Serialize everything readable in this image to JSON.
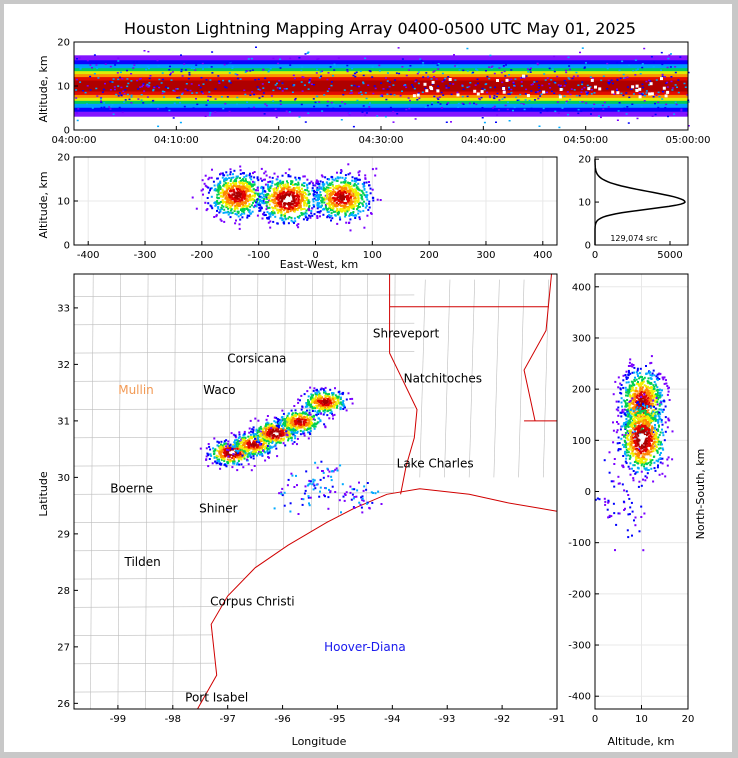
{
  "title": "Houston Lightning Mapping Array 0400-0500 UTC May 01, 2025",
  "chart_data": [
    {
      "id": "time-height",
      "type": "heatmap",
      "ylabel": "Altitude, km",
      "xlabel": "",
      "x_ticks": [
        "04:00:00",
        "04:10:00",
        "04:20:00",
        "04:30:00",
        "04:40:00",
        "04:50:00",
        "05:00:00"
      ],
      "y_ticks": [
        0,
        10,
        20
      ],
      "xlim": [
        "04:00:00",
        "05:00:00"
      ],
      "ylim": [
        0,
        20
      ],
      "band_center_km": 10,
      "band_halfwidth_km": 4.5
    },
    {
      "id": "ew-altitude",
      "type": "heatmap",
      "xlabel": "East-West, km",
      "ylabel": "Altitude, km",
      "x_ticks": [
        -400,
        -300,
        -200,
        -100,
        0,
        100,
        200,
        300,
        400
      ],
      "y_ticks": [
        0,
        10,
        20
      ],
      "xlim": [
        -425,
        425
      ],
      "ylim": [
        0,
        20
      ],
      "blobs_km": [
        {
          "x": -140,
          "z": 11.5,
          "core": "high"
        },
        {
          "x": -50,
          "z": 10.5,
          "core": "white"
        },
        {
          "x": 45,
          "z": 11,
          "core": "high"
        }
      ]
    },
    {
      "id": "altitude-histogram",
      "type": "line",
      "x_ticks": [
        0,
        5000
      ],
      "y_ticks": [
        0,
        10,
        20
      ],
      "xlim": [
        0,
        6200
      ],
      "ylim": [
        0,
        20.5
      ],
      "peak_altitude_km": 10,
      "peak_count": 6000,
      "annotation": "129,074 src"
    },
    {
      "id": "plan-view-map",
      "type": "scatter",
      "xlabel": "Longitude",
      "ylabel": "Latitude",
      "x_ticks": [
        -99,
        -98,
        -97,
        -96,
        -95,
        -94,
        -93,
        -92,
        -91
      ],
      "y_ticks": [
        26,
        27,
        28,
        29,
        30,
        31,
        32,
        33
      ],
      "xlim": [
        -99.8,
        -91
      ],
      "ylim": [
        25.9,
        33.6
      ],
      "cities": [
        {
          "name": "Shreveport",
          "lon": -93.75,
          "lat": 32.55,
          "color": "#000000"
        },
        {
          "name": "Corsicana",
          "lon": -96.47,
          "lat": 32.1,
          "color": "#000000"
        },
        {
          "name": "Natchitoches",
          "lon": -93.08,
          "lat": 31.75,
          "color": "#000000"
        },
        {
          "name": "Mullin",
          "lon": -98.67,
          "lat": 31.55,
          "color": "#f29a55"
        },
        {
          "name": "Waco",
          "lon": -97.15,
          "lat": 31.55,
          "color": "#000000"
        },
        {
          "name": "Lake Charles",
          "lon": -93.22,
          "lat": 30.25,
          "color": "#000000"
        },
        {
          "name": "Boerne",
          "lon": -98.75,
          "lat": 29.8,
          "color": "#000000"
        },
        {
          "name": "Shiner",
          "lon": -97.17,
          "lat": 29.45,
          "color": "#000000"
        },
        {
          "name": "Tilden",
          "lon": -98.55,
          "lat": 28.5,
          "color": "#000000"
        },
        {
          "name": "Corpus Christi",
          "lon": -96.55,
          "lat": 27.8,
          "color": "#000000"
        },
        {
          "name": "Hoover-Diana",
          "lon": -94.5,
          "lat": 27.0,
          "color": "#1a1aee"
        },
        {
          "name": "Port Isabel",
          "lon": -97.2,
          "lat": 26.1,
          "color": "#000000"
        }
      ],
      "storm_line": [
        {
          "lon": -96.95,
          "lat": 30.45,
          "core": "white"
        },
        {
          "lon": -96.55,
          "lat": 30.6,
          "core": "high"
        },
        {
          "lon": -96.15,
          "lat": 30.8,
          "core": "white"
        },
        {
          "lon": -95.7,
          "lat": 31.0,
          "core": "high"
        },
        {
          "lon": -95.25,
          "lat": 31.35,
          "core": "high"
        }
      ],
      "scatter_sources": [
        {
          "lon": -95.4,
          "lat": 29.85
        },
        {
          "lon": -94.9,
          "lat": 29.7
        },
        {
          "lon": -94.55,
          "lat": 29.6
        },
        {
          "lon": -95.75,
          "lat": 29.75
        },
        {
          "lon": -95.2,
          "lat": 30.1
        }
      ]
    },
    {
      "id": "altitude-ns",
      "type": "heatmap",
      "xlabel": "Altitude, km",
      "ylabel": "North-South, km",
      "x_ticks": [
        0,
        10,
        20
      ],
      "y_ticks": [
        -400,
        -300,
        -200,
        -100,
        0,
        100,
        200,
        300,
        400
      ],
      "xlim": [
        0,
        20
      ],
      "ylim": [
        -425,
        425
      ],
      "blobs_km": [
        {
          "z": 10,
          "y": 175,
          "core": "high"
        },
        {
          "z": 10,
          "y": 105,
          "core": "white"
        }
      ]
    }
  ],
  "colors": {
    "density_scale": [
      "#7a00ff",
      "#0000ff",
      "#00aaff",
      "#00d050",
      "#f0f000",
      "#ff8800",
      "#e00000",
      "#aa0000",
      "#ffffff"
    ],
    "state_border": "#d00000",
    "county_line": "#bdbdbd",
    "frame_bg": "#ffffff",
    "outer_bg": "#c8c8c8"
  }
}
